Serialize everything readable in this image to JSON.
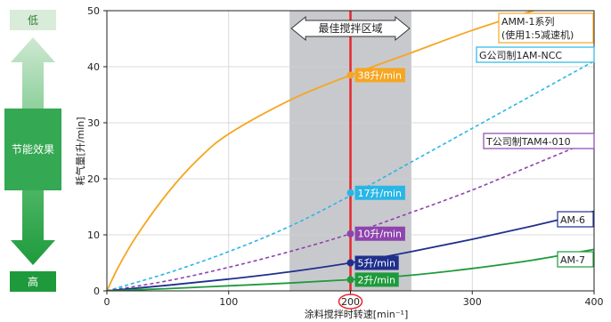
{
  "side_panel": {
    "low_label": "低",
    "high_label": "高",
    "effect_label": "节能效果",
    "low_color": "#d9ebd9",
    "high_color": "#1e9a3c",
    "effect_color": "#34a853"
  },
  "chart_data": {
    "type": "line",
    "xlabel": "涂料搅拌时转速[min⁻¹]",
    "ylabel": "耗气量[升/min]",
    "xlim": [
      0,
      400
    ],
    "ylim": [
      0,
      50
    ],
    "xticks": [
      0,
      100,
      200,
      300,
      400
    ],
    "yticks": [
      0,
      10,
      20,
      30,
      40,
      50
    ],
    "optimal_zone": {
      "label": "最佳搅拌区域",
      "x_range": [
        150,
        250
      ],
      "marker_x": 200,
      "color": "#c8c9cd"
    },
    "series": [
      {
        "name": "AMM-1系列",
        "name_line2": "(使用1:5减速机)",
        "color": "#f5a623",
        "dash": false,
        "x": [
          0,
          10,
          25,
          50,
          75,
          100,
          150,
          200,
          250,
          300,
          350,
          400
        ],
        "y": [
          0,
          4.5,
          10,
          17.5,
          23.5,
          28,
          34,
          38.5,
          42.5,
          46.5,
          50,
          53.5
        ]
      },
      {
        "name": "G公司制1AM-NCC",
        "color": "#29b6e6",
        "dash": true,
        "x": [
          0,
          50,
          100,
          150,
          200,
          250,
          300,
          350,
          400
        ],
        "y": [
          0,
          3.2,
          7,
          11.5,
          17,
          23,
          29,
          35,
          41
        ]
      },
      {
        "name": "T公司制TAM4-010",
        "color": "#8e44ad",
        "dash": true,
        "x": [
          0,
          50,
          100,
          150,
          200,
          250,
          300,
          350,
          400
        ],
        "y": [
          0,
          1.8,
          4.2,
          7,
          10.2,
          14,
          18,
          22.5,
          27
        ]
      },
      {
        "name": "AM-6",
        "color": "#1f2f8c",
        "dash": false,
        "x": [
          0,
          50,
          100,
          150,
          200,
          250,
          300,
          350,
          400
        ],
        "y": [
          0,
          1,
          2.1,
          3.4,
          5,
          7,
          9.2,
          11.6,
          14.2
        ]
      },
      {
        "name": "AM-7",
        "color": "#1e9a3c",
        "dash": false,
        "x": [
          0,
          50,
          100,
          150,
          200,
          250,
          300,
          350,
          400
        ],
        "y": [
          0,
          0.4,
          0.9,
          1.4,
          2,
          2.8,
          4,
          5.5,
          7.4
        ]
      }
    ],
    "annotations": [
      {
        "label": "38升/min",
        "x": 200,
        "y": 38.5,
        "color": "#f5a623"
      },
      {
        "label": "17升/min",
        "x": 200,
        "y": 17.5,
        "color": "#29b6e6"
      },
      {
        "label": "10升/min",
        "x": 200,
        "y": 10.2,
        "color": "#8e44ad"
      },
      {
        "label": "5升/min",
        "x": 200,
        "y": 5,
        "color": "#1f2f8c"
      },
      {
        "label": "2升/min",
        "x": 200,
        "y": 2,
        "color": "#1e9a3c"
      }
    ]
  }
}
